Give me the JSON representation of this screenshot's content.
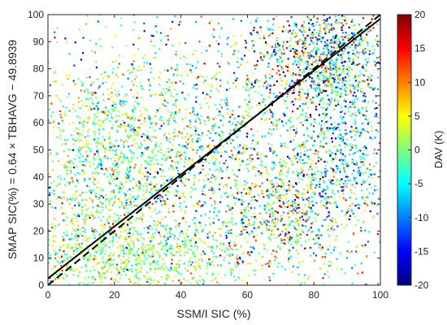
{
  "chart_data": {
    "type": "scatter",
    "xlabel": "SSM/I SIC (%)",
    "ylabel": "SMAP SIC(%) = 0.64 × TBHAVG − 49.8939",
    "xlim": [
      0,
      100
    ],
    "ylim": [
      0,
      100
    ],
    "xticks": [
      0,
      20,
      40,
      60,
      80,
      100
    ],
    "yticks": [
      0,
      10,
      20,
      30,
      40,
      50,
      60,
      70,
      80,
      90,
      100
    ],
    "colorbar": {
      "label": "DAV (K)",
      "range": [
        -20,
        20
      ],
      "ticks": [
        20,
        15,
        10,
        5,
        0,
        -5,
        -10,
        -15,
        -20
      ],
      "colormap": "jet"
    },
    "lines": [
      {
        "style": "solid",
        "x": [
          0,
          100
        ],
        "y": [
          2.5,
          98.5
        ]
      },
      {
        "style": "dashed",
        "x": [
          0,
          100
        ],
        "y": [
          0,
          100
        ]
      }
    ],
    "grid": false,
    "legend": "none",
    "density_regions": [
      {
        "x_center": 20,
        "y_center": 45,
        "spread": "wide",
        "dav_typical": [
          -5,
          5
        ]
      },
      {
        "x_center": 85,
        "y_center": 85,
        "spread": "medium",
        "dav_typical": [
          -20,
          20
        ]
      },
      {
        "x_center": 75,
        "y_center": 25,
        "spread": "medium",
        "dav_typical": [
          -10,
          15
        ]
      },
      {
        "x_center": 10,
        "y_center": 5,
        "spread": "narrow",
        "dav_typical": [
          -5,
          5
        ]
      }
    ]
  }
}
